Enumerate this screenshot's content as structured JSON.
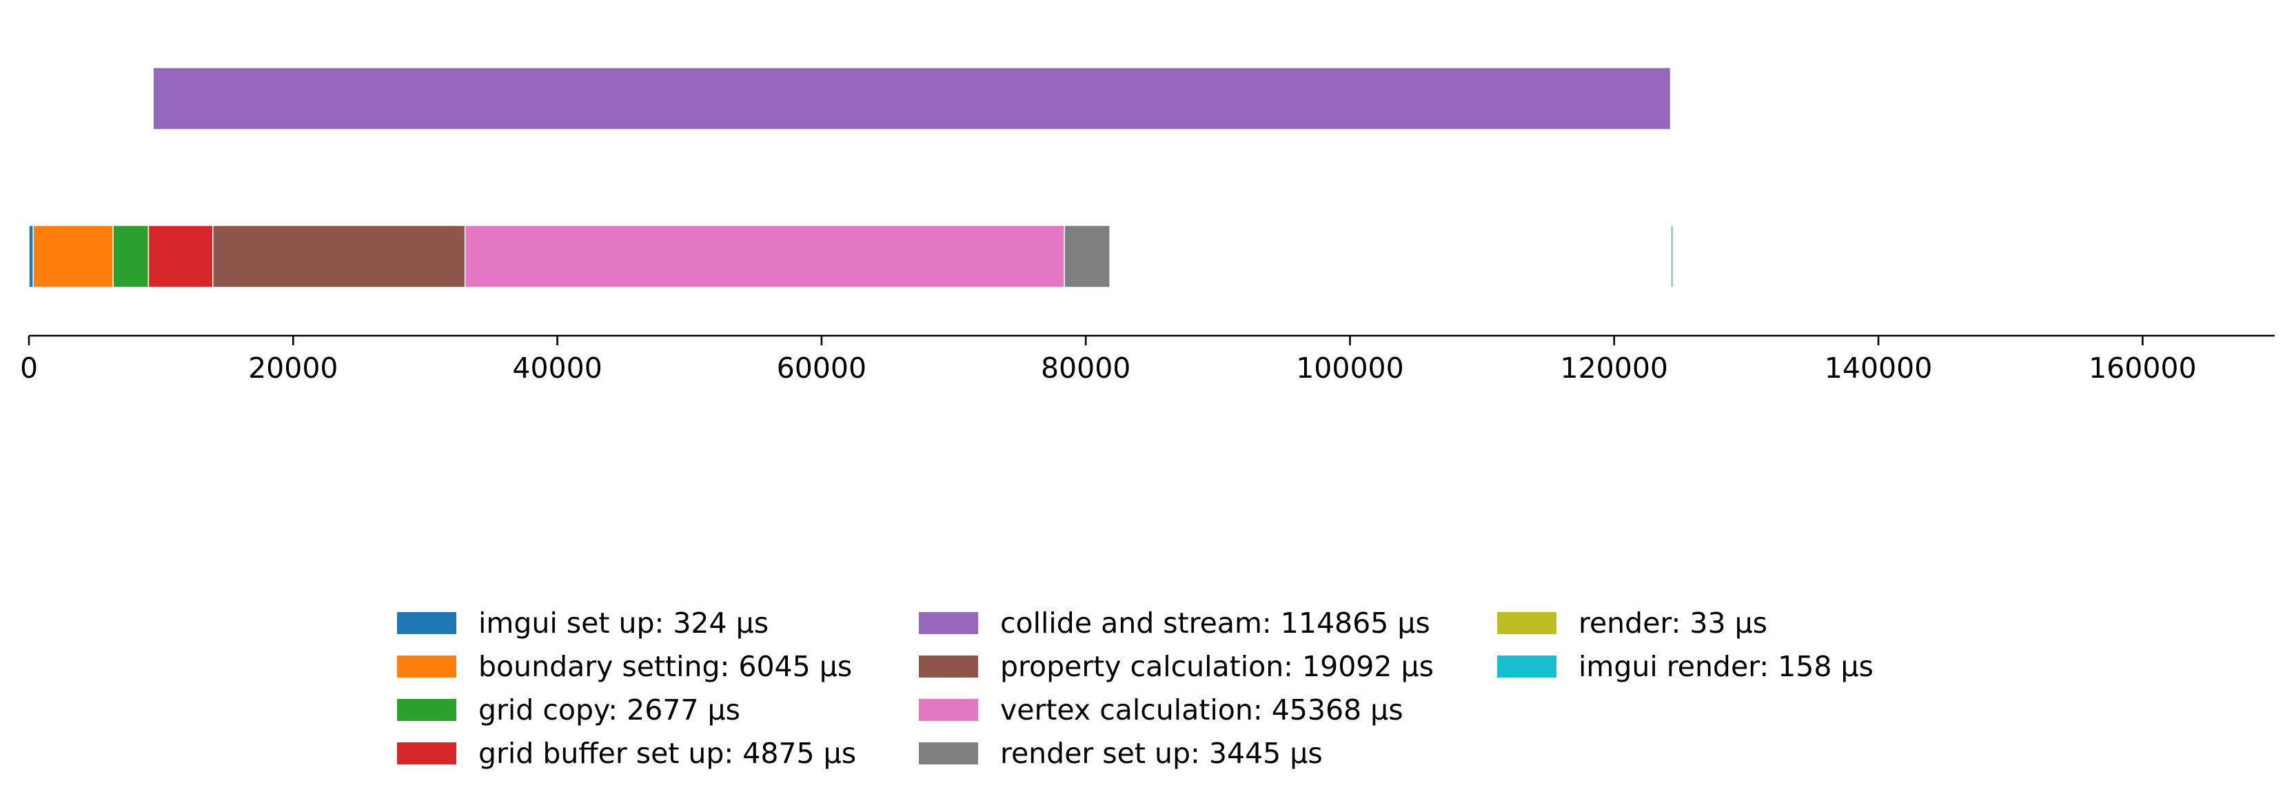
{
  "chart_data": {
    "type": "bar",
    "orientation": "horizontal-stacked-timeline",
    "title": "",
    "xlabel": "",
    "ylabel": "",
    "xlim": [
      0,
      170000
    ],
    "x_ticks": [
      0,
      20000,
      40000,
      60000,
      80000,
      100000,
      120000,
      140000,
      160000
    ],
    "grid": false,
    "legend_position": "bottom-center",
    "legend_columns": 3,
    "rows": [
      {
        "row": "top",
        "segments": [
          "collide and stream"
        ]
      },
      {
        "row": "bottom",
        "segments": [
          "imgui set up",
          "boundary setting",
          "grid copy",
          "grid buffer set up",
          "property calculation",
          "vertex calculation",
          "render set up",
          "render",
          "imgui render"
        ]
      }
    ],
    "series": [
      {
        "name": "imgui set up",
        "duration": 324,
        "start": 0,
        "row": "bottom",
        "color": "#1f77b4",
        "legend_text": "imgui set up: 324 µs"
      },
      {
        "name": "boundary setting",
        "duration": 6045,
        "start": 324,
        "row": "bottom",
        "color": "#ff7f0e",
        "legend_text": "boundary setting: 6045 µs"
      },
      {
        "name": "grid copy",
        "duration": 2677,
        "start": 6369,
        "row": "bottom",
        "color": "#2ca02c",
        "legend_text": "grid copy: 2677 µs"
      },
      {
        "name": "grid buffer set up",
        "duration": 4875,
        "start": 9046,
        "row": "bottom",
        "color": "#d62728",
        "legend_text": "grid buffer set up: 4875 µs"
      },
      {
        "name": "collide and stream",
        "duration": 114865,
        "start": 9399,
        "row": "top",
        "color": "#9467bd",
        "legend_text": "collide and stream: 114865 µs"
      },
      {
        "name": "property calculation",
        "duration": 19092,
        "start": 13921,
        "row": "bottom",
        "color": "#8c564b",
        "legend_text": "property calculation: 19092 µs"
      },
      {
        "name": "vertex calculation",
        "duration": 45368,
        "start": 33013,
        "row": "bottom",
        "color": "#e377c2",
        "legend_text": "vertex calculation: 45368 µs"
      },
      {
        "name": "render set up",
        "duration": 3445,
        "start": 78381,
        "row": "bottom",
        "color": "#7f7f7f",
        "legend_text": "render set up: 3445 µs"
      },
      {
        "name": "render",
        "duration": 33,
        "start": 124264,
        "row": "bottom",
        "color": "#bcbd22",
        "legend_text": "render: 33 µs"
      },
      {
        "name": "imgui render",
        "duration": 158,
        "start": 124297,
        "row": "bottom",
        "color": "#17becf",
        "legend_text": "imgui render: 158 µs"
      }
    ]
  }
}
